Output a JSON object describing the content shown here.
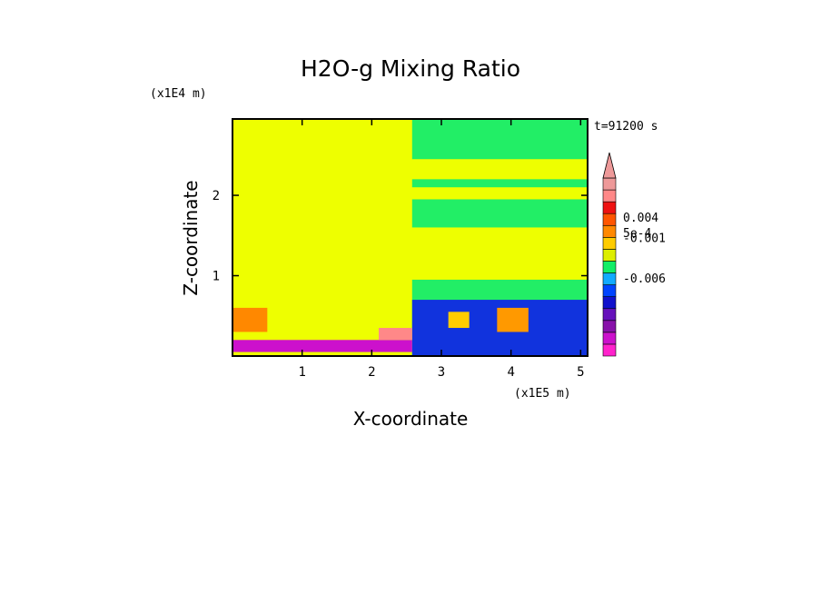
{
  "chart_data": {
    "type": "heatmap",
    "title": "H2O-g Mixing Ratio",
    "xlabel": "X-coordinate",
    "ylabel": "Z-coordinate",
    "x_scale_label": "(x1E5 m)",
    "y_scale_label": "(x1E4 m)",
    "time_label": "t=91200 s",
    "xlim": [
      0,
      5.1
    ],
    "ylim": [
      0,
      2.95
    ],
    "x_ticks": [
      1,
      2,
      3,
      4,
      5
    ],
    "y_ticks": [
      1,
      2
    ],
    "colorbar": {
      "colors": [
        "#ff22cc",
        "#cc11cc",
        "#8811aa",
        "#6611bb",
        "#1111cc",
        "#0044ff",
        "#11aaff",
        "#11ee66",
        "#ddee00",
        "#ffcc00",
        "#ff8800",
        "#ff5500",
        "#ee1111",
        "#ff8888",
        "#ee9999"
      ],
      "labels": [
        {
          "text": "0.004",
          "level": 0.22
        },
        {
          "text": "5e-4",
          "level": 0.305
        },
        {
          "text": "-0.001",
          "level": 0.335
        },
        {
          "text": "-0.006",
          "level": 0.56
        }
      ],
      "extend": "max"
    },
    "regions": [
      {
        "x0": 0,
        "x1": 5.1,
        "y0": 0,
        "y1": 2.95,
        "color": "#eeff00"
      },
      {
        "x0": 2.58,
        "x1": 5.1,
        "y0": 2.45,
        "y1": 2.95,
        "color": "#22ee66"
      },
      {
        "x0": 2.58,
        "x1": 5.1,
        "y0": 2.1,
        "y1": 2.2,
        "color": "#22ee66"
      },
      {
        "x0": 2.58,
        "x1": 5.1,
        "y0": 1.6,
        "y1": 1.95,
        "color": "#22ee66"
      },
      {
        "x0": 2.58,
        "x1": 5.1,
        "y0": 0,
        "y1": 0.95,
        "color": "#22ee66"
      },
      {
        "x0": 2.58,
        "x1": 5.1,
        "y0": 0,
        "y1": 0.7,
        "color": "#1133dd"
      },
      {
        "x0": 0,
        "x1": 2.58,
        "y0": 0.05,
        "y1": 0.2,
        "color": "#cc11cc"
      },
      {
        "x0": 0,
        "x1": 0.5,
        "y0": 0.3,
        "y1": 0.6,
        "color": "#ff8800"
      },
      {
        "x0": 2.1,
        "x1": 2.58,
        "y0": 0.2,
        "y1": 0.35,
        "color": "#ff8888"
      },
      {
        "x0": 3.8,
        "x1": 4.25,
        "y0": 0.3,
        "y1": 0.6,
        "color": "#ff9900"
      },
      {
        "x0": 3.1,
        "x1": 3.4,
        "y0": 0.35,
        "y1": 0.55,
        "color": "#ffcc00"
      }
    ]
  }
}
